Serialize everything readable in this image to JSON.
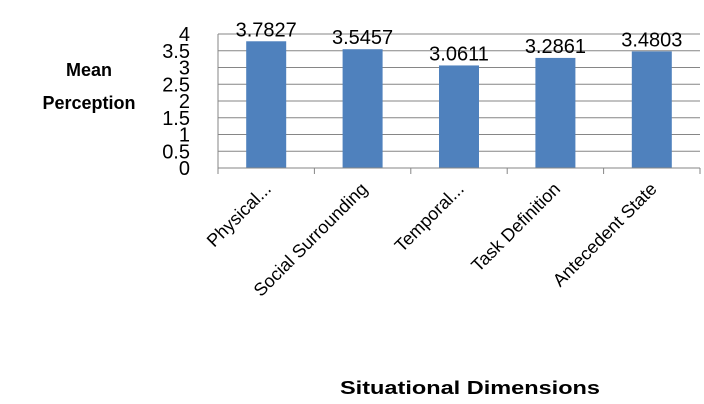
{
  "chart_data": {
    "type": "bar",
    "categories": [
      "Physical...",
      "Social Surrounding",
      "Temporal...",
      "Task Definition",
      "Antecedent State"
    ],
    "values": [
      3.7827,
      3.5457,
      3.0611,
      3.2861,
      3.4803
    ],
    "data_labels": [
      "3.7827",
      "3.5457",
      "3.0611",
      "3.2861",
      "3.4803"
    ],
    "title": "",
    "xlabel": "Situational Dimensions",
    "ylabel_lines": [
      "Mean",
      "Perception"
    ],
    "ylim": [
      0,
      4
    ],
    "yticks": [
      0,
      0.5,
      1,
      1.5,
      2,
      2.5,
      3,
      3.5,
      4
    ],
    "ytick_labels": [
      "0",
      "0.5",
      "1",
      "1.5",
      "2",
      "2.5",
      "3",
      "3.5",
      "4"
    ],
    "grid": true,
    "legend": "none",
    "colors": {
      "bar": "#4f81bd",
      "grid": "#868686",
      "axis": "#868686"
    }
  }
}
